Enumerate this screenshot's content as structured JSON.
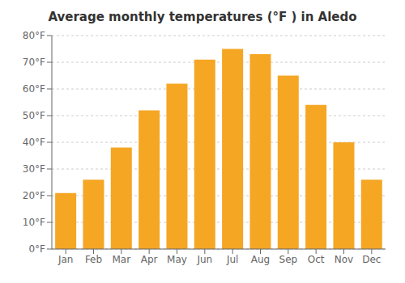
{
  "chart_data": {
    "type": "bar",
    "title": "Average monthly temperatures (°F ) in Aledo",
    "categories": [
      "Jan",
      "Feb",
      "Mar",
      "Apr",
      "May",
      "Jun",
      "Jul",
      "Aug",
      "Sep",
      "Oct",
      "Nov",
      "Dec"
    ],
    "values": [
      21,
      26,
      38,
      52,
      62,
      71,
      75,
      73,
      65,
      54,
      40,
      26
    ],
    "color": "#F5A623",
    "ylim": [
      0,
      80
    ],
    "yticks": [
      {
        "value": 0,
        "label": "0°F"
      },
      {
        "value": 10,
        "label": "10°F"
      },
      {
        "value": 20,
        "label": "20°F"
      },
      {
        "value": 30,
        "label": "30°F"
      },
      {
        "value": 40,
        "label": "40°F"
      },
      {
        "value": 50,
        "label": "50°F"
      },
      {
        "value": 60,
        "label": "60°F"
      },
      {
        "value": 70,
        "label": "70°F"
      },
      {
        "value": 80,
        "label": "80°F"
      }
    ],
    "grid": true
  }
}
